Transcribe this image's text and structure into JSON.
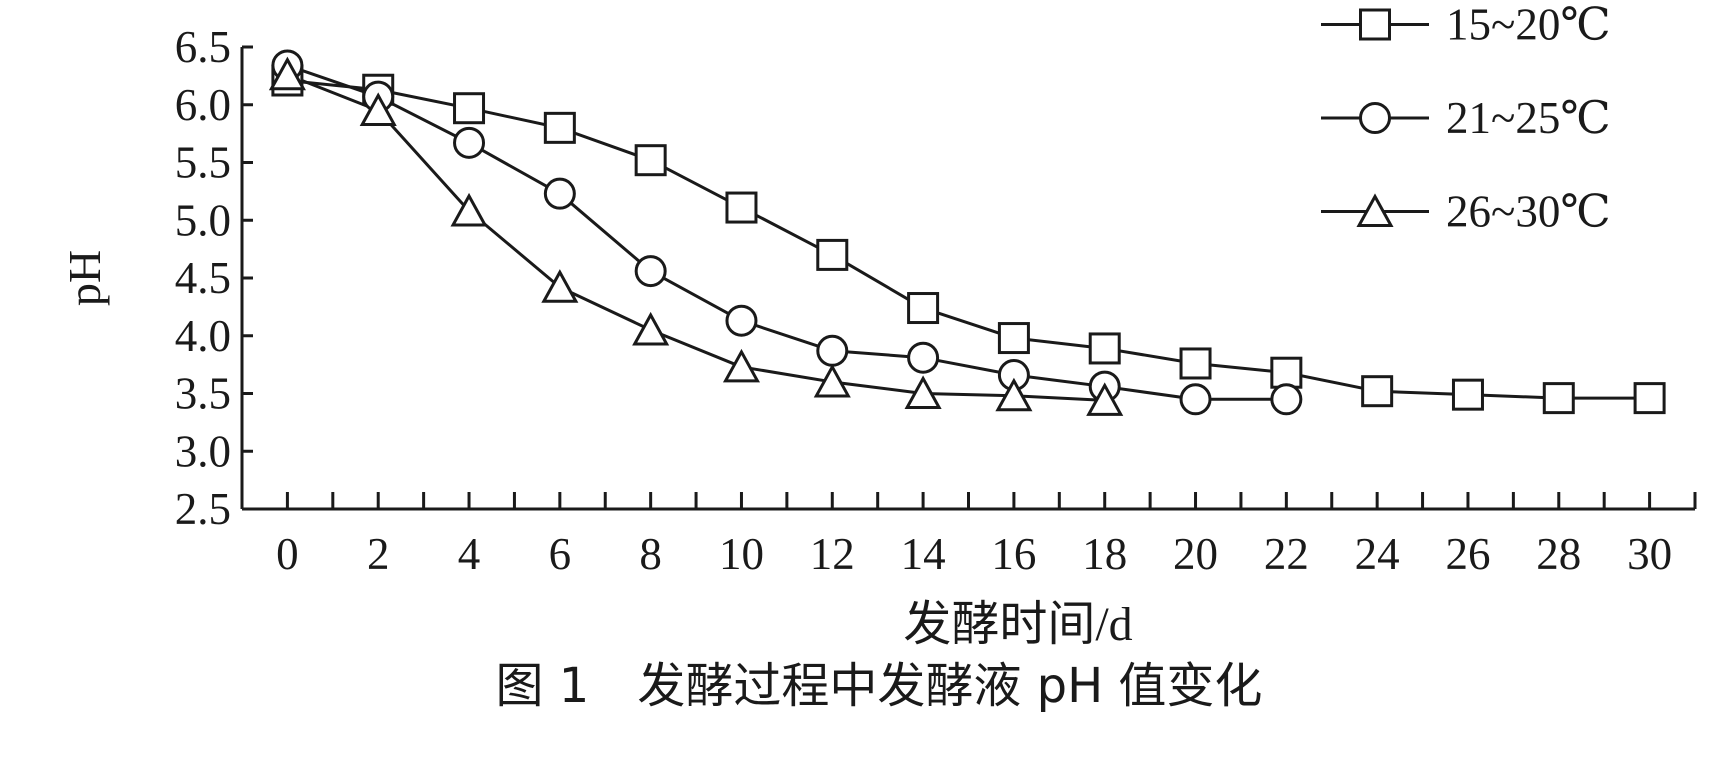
{
  "chart_data": {
    "type": "line",
    "caption": "图 1　发酵过程中发酵液 pH 值变化",
    "xlabel": "发酵时间/d",
    "ylabel": "pH",
    "xlim": [
      -1,
      31
    ],
    "ylim": [
      2.5,
      6.5
    ],
    "xtick_labels": [
      "0",
      "2",
      "4",
      "6",
      "8",
      "10",
      "12",
      "14",
      "16",
      "18",
      "20",
      "22",
      "24",
      "26",
      "28",
      "30"
    ],
    "ytick_labels": [
      "2.5",
      "3.0",
      "3.5",
      "4.0",
      "4.5",
      "5.0",
      "5.5",
      "6.0",
      "6.5"
    ],
    "grid": false,
    "legend": "top-right",
    "series": [
      {
        "name": "15~20℃",
        "marker": "square",
        "x": [
          0,
          2,
          4,
          6,
          8,
          10,
          12,
          14,
          16,
          18,
          20,
          22,
          24,
          26,
          28,
          30
        ],
        "y": [
          6.21,
          6.13,
          5.97,
          5.8,
          5.52,
          5.11,
          4.7,
          4.24,
          3.98,
          3.89,
          3.76,
          3.68,
          3.52,
          3.49,
          3.46,
          3.46
        ]
      },
      {
        "name": "21~25℃",
        "marker": "circle",
        "x": [
          0,
          2,
          4,
          6,
          8,
          10,
          12,
          14,
          16,
          18,
          20,
          22
        ],
        "y": [
          6.34,
          6.07,
          5.67,
          5.23,
          4.56,
          4.13,
          3.87,
          3.81,
          3.66,
          3.56,
          3.45,
          3.45
        ]
      },
      {
        "name": "26~30℃",
        "marker": "triangle",
        "x": [
          0,
          2,
          4,
          6,
          8,
          10,
          12,
          14,
          16,
          18
        ],
        "y": [
          6.26,
          5.95,
          5.08,
          4.42,
          4.05,
          3.73,
          3.6,
          3.5,
          3.48,
          3.44
        ]
      }
    ],
    "colors": {
      "line": "#1a1a1a",
      "marker_fill": "#ffffff",
      "text": "#1a1a1a",
      "background": "#ffffff"
    }
  }
}
